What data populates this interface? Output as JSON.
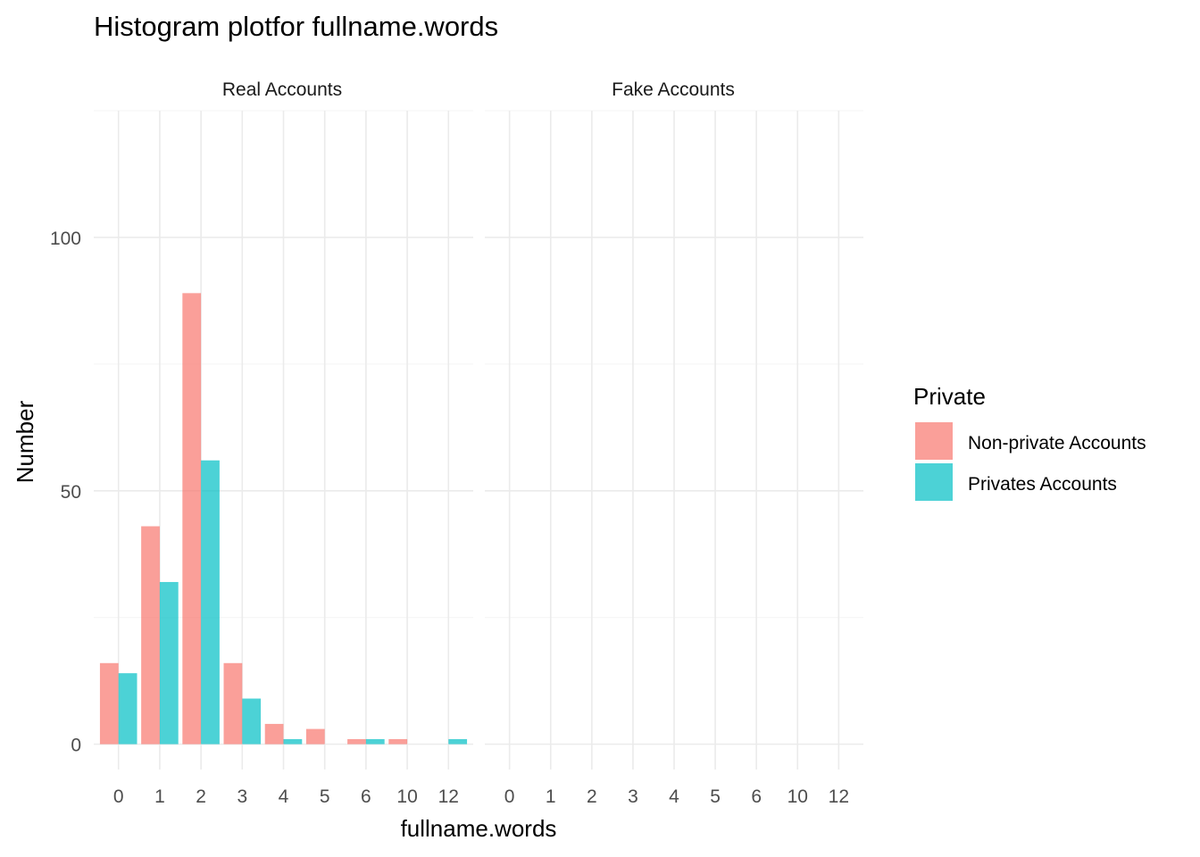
{
  "chart_data": {
    "type": "bar",
    "title": "Histogram  plotfor fullname.words",
    "xlabel": "fullname.words",
    "ylabel": "Number",
    "ylim": [
      -5,
      125
    ],
    "y_ticks": [
      0,
      50,
      100
    ],
    "grid": true,
    "categories": [
      "0",
      "1",
      "2",
      "3",
      "4",
      "5",
      "6",
      "10",
      "12"
    ],
    "facets": [
      {
        "label": "Real Accounts",
        "series": [
          {
            "name": "Non-private Accounts",
            "values": [
              16,
              43,
              89,
              16,
              4,
              3,
              1,
              1,
              0
            ]
          },
          {
            "name": "Privates Accounts",
            "values": [
              14,
              32,
              56,
              9,
              1,
              0,
              1,
              0,
              1
            ]
          }
        ]
      },
      {
        "label": "Fake Accounts",
        "series": [
          {
            "name": "Non-private Accounts",
            "values": [
              0,
              0,
              0,
              0,
              0,
              0,
              0,
              0,
              0
            ]
          },
          {
            "name": "Privates Accounts",
            "values": [
              0,
              0,
              0,
              0,
              0,
              0,
              0,
              0,
              0
            ]
          }
        ]
      }
    ],
    "legend": {
      "title": "Private",
      "position": "right",
      "entries": [
        "Non-private Accounts",
        "Privates Accounts"
      ]
    },
    "colors": {
      "Non-private Accounts": "#F8766D",
      "Privates Accounts": "#00BFC4"
    },
    "bar_opacity": 0.7
  }
}
